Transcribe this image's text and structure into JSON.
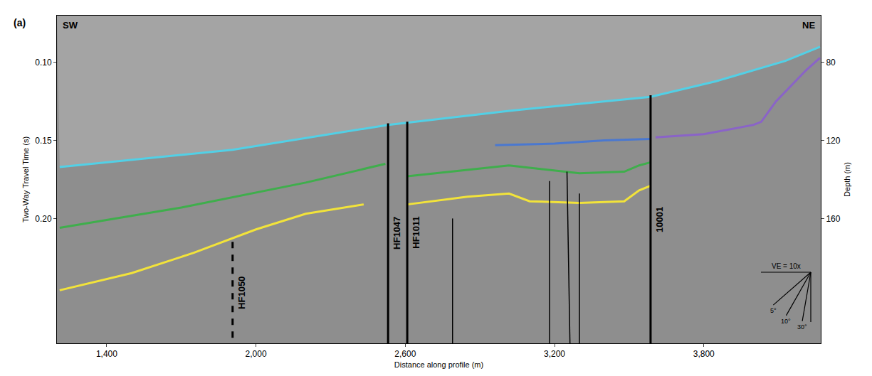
{
  "chart_data": {
    "type": "line",
    "panel_label": "(a)",
    "direction_labels": {
      "left": "SW",
      "right": "NE"
    },
    "x_label": "Distance along profile (m)",
    "y_label": "Two-Way Travel Time (s)",
    "y2_label": "Depth (m)",
    "xlim": [
      1200,
      4270
    ],
    "xticks": [
      {
        "value": 1400,
        "label": "1,400"
      },
      {
        "value": 2000,
        "label": "2,000"
      },
      {
        "value": 2600,
        "label": "2,600"
      },
      {
        "value": 3200,
        "label": "3,200"
      },
      {
        "value": 3800,
        "label": "3,800"
      }
    ],
    "ylim": [
      0.28,
      0.07
    ],
    "yticks": [
      {
        "value": 0.1,
        "label": "0.10"
      },
      0.15,
      {
        "value": 0.2,
        "label": "0.20"
      }
    ],
    "y2lim": [
      224,
      56
    ],
    "y2ticks": [
      80,
      120,
      160
    ],
    "grid": false,
    "series": [
      {
        "color": "#52d0e6",
        "x": [
          1211,
          1906,
          2531,
          3017,
          3586,
          3850,
          4128,
          4267
        ],
        "values": [
          0.167,
          0.156,
          0.14,
          0.131,
          0.122,
          0.112,
          0.099,
          0.09
        ]
      },
      {
        "color": "#3fae4c",
        "x": [
          1211,
          1700,
          2200,
          2520,
          2560,
          2608,
          2900,
          3017,
          3300,
          3480,
          3540,
          3586
        ],
        "values": [
          0.206,
          0.193,
          0.177,
          0.165,
          null,
          0.173,
          0.168,
          0.166,
          0.171,
          0.17,
          0.166,
          0.164
        ]
      },
      {
        "color": "#f2e33a",
        "x": [
          1211,
          1500,
          1750,
          2000,
          2200,
          2433,
          2520,
          2608,
          2850,
          3017,
          3100,
          3300,
          3480,
          3540,
          3586
        ],
        "values": [
          0.246,
          0.235,
          0.222,
          0.207,
          0.197,
          0.191,
          null,
          0.191,
          0.186,
          0.184,
          0.189,
          0.19,
          0.189,
          0.182,
          0.179
        ]
      },
      {
        "color": "#4a78d0",
        "x": [
          2961,
          3200,
          3400,
          3586
        ],
        "values": [
          0.153,
          0.152,
          0.15,
          0.149
        ]
      },
      {
        "color": "#8a63c8",
        "x": [
          3606,
          3800,
          4000,
          4031,
          4090,
          4211,
          4267
        ],
        "values": [
          0.148,
          0.146,
          0.14,
          0.138,
          0.125,
          0.105,
          0.097
        ]
      }
    ],
    "wells": [
      {
        "label": "HF1050",
        "x": [
          1906,
          1906
        ],
        "values": [
          0.215,
          0.28
        ],
        "line_style": "dashed"
      },
      {
        "label": "HF1047",
        "x": [
          2531,
          2531
        ],
        "values": [
          0.139,
          0.28
        ],
        "line_style": "solid"
      },
      {
        "label": "HF1011",
        "x": [
          2608,
          2608
        ],
        "values": [
          0.138,
          0.28
        ],
        "line_style": "solid"
      },
      {
        "label": "10001",
        "x": [
          3586,
          3586
        ],
        "values": [
          0.121,
          0.28
        ],
        "line_style": "solid"
      }
    ],
    "faults": [
      {
        "x": [
          2790,
          2790
        ],
        "values": [
          0.2,
          0.28
        ]
      },
      {
        "x": [
          3180,
          3180
        ],
        "values": [
          0.176,
          0.28
        ]
      },
      {
        "x": [
          3250,
          3262
        ],
        "values": [
          0.17,
          0.28
        ]
      },
      {
        "x": [
          3300,
          3300
        ],
        "values": [
          0.184,
          0.28
        ]
      }
    ],
    "vertical_exaggeration": {
      "value": 10,
      "label": "VE = 10x",
      "angles": [
        {
          "value": 5,
          "label": "5°"
        },
        {
          "value": 10,
          "label": "10°"
        },
        {
          "value": 30,
          "label": "30°"
        }
      ]
    }
  }
}
